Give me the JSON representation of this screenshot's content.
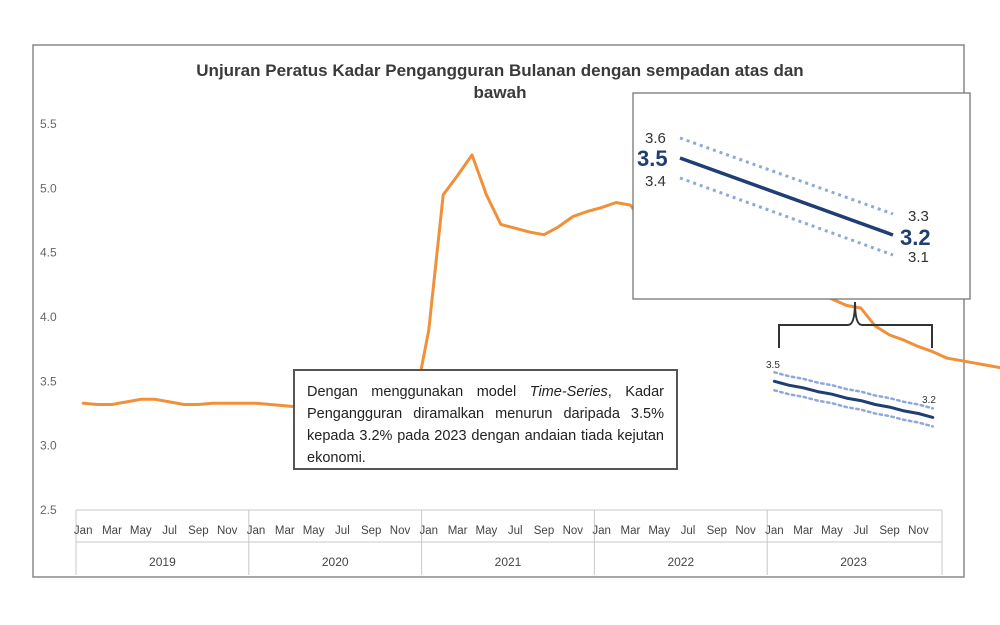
{
  "chart_data": {
    "type": "line",
    "title_lines": [
      "Unjuran Peratus Kadar Pengangguran Bulanan dengan sempadan atas dan",
      "bawah"
    ],
    "ylim": [
      2.5,
      5.5
    ],
    "y_ticks": [
      "2.5",
      "3.0",
      "3.5",
      "4.0",
      "4.5",
      "5.0",
      "5.5"
    ],
    "month_labels": [
      "Jan",
      "Mar",
      "May",
      "Jul",
      "Sep",
      "Nov"
    ],
    "years": [
      "2019",
      "2020",
      "2021",
      "2022",
      "2023"
    ],
    "grid": false,
    "series": [
      {
        "role": "actual",
        "color": "#f0913a",
        "values": [
          3.33,
          3.32,
          3.32,
          3.34,
          3.36,
          3.36,
          3.34,
          3.32,
          3.32,
          3.33,
          3.33,
          3.33,
          3.33,
          3.32,
          3.31,
          3.3,
          3.25,
          3.25,
          3.25,
          3.26,
          3.27,
          3.25,
          3.25,
          3.32,
          3.9,
          4.95,
          5.1,
          5.26,
          4.95,
          4.72,
          4.69,
          4.66,
          4.64,
          4.7,
          4.78,
          4.82,
          4.85,
          4.89,
          4.87,
          4.72,
          4.67,
          4.6,
          4.53,
          4.78,
          4.83,
          4.68,
          4.58,
          4.45,
          4.32,
          4.26,
          4.22,
          4.18,
          4.14,
          4.09,
          4.07,
          3.93,
          3.86,
          3.82,
          3.77,
          3.73,
          3.68,
          3.66,
          3.64,
          3.62,
          3.6,
          3.56,
          3.53
        ]
      },
      {
        "role": "forecast",
        "color": "#1f3e73",
        "values": [
          3.5,
          3.47,
          3.45,
          3.42,
          3.4,
          3.37,
          3.35,
          3.32,
          3.3,
          3.27,
          3.25,
          3.22
        ]
      },
      {
        "role": "upper-bound",
        "color": "#8ea9d8",
        "values": [
          3.57,
          3.54,
          3.52,
          3.49,
          3.47,
          3.44,
          3.42,
          3.39,
          3.37,
          3.34,
          3.32,
          3.29
        ]
      },
      {
        "role": "lower-bound",
        "color": "#8ea9d8",
        "values": [
          3.43,
          3.4,
          3.38,
          3.35,
          3.33,
          3.3,
          3.28,
          3.25,
          3.23,
          3.2,
          3.18,
          3.15
        ]
      }
    ],
    "forecast_start_label": "3.5",
    "forecast_end_label": "3.2",
    "inset": {
      "start_value": "3.5",
      "start_upper": "3.6",
      "start_lower": "3.4",
      "end_value": "3.2",
      "end_upper": "3.3",
      "end_lower": "3.1"
    }
  },
  "note": {
    "before_italic": "Dengan menggunakan model ",
    "italic": "Time-Series",
    "after_italic": ", Kadar Pengangguran diramalkan menurun daripada 3.5% kepada 3.2% pada 2023 dengan andaian tiada kejutan ekonomi."
  }
}
